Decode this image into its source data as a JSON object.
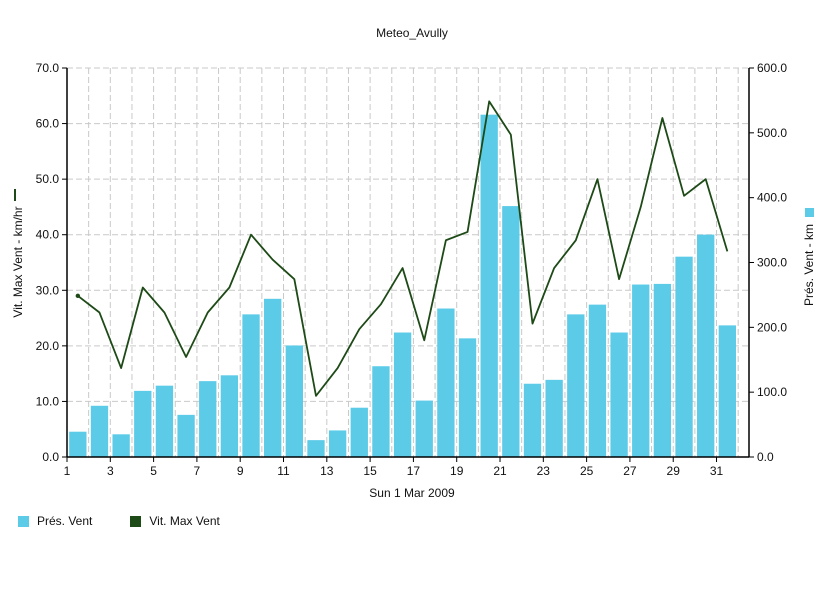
{
  "colors": {
    "bar": "#5bcbe8",
    "line": "#1d4a16",
    "grid": "#c9c9c9",
    "axis": "#000000"
  },
  "chart_data": {
    "type": "bar+line",
    "title": "Meteo_Avully",
    "xlabel": "Sun 1 Mar 2009",
    "x": [
      1,
      2,
      3,
      4,
      5,
      6,
      7,
      8,
      9,
      10,
      11,
      12,
      13,
      14,
      15,
      16,
      17,
      18,
      19,
      20,
      21,
      22,
      23,
      24,
      25,
      26,
      27,
      28,
      29,
      30,
      31,
      32
    ],
    "x_ticks": [
      "1",
      "3",
      "5",
      "7",
      "9",
      "11",
      "13",
      "15",
      "17",
      "19",
      "21",
      "23",
      "25",
      "27",
      "29",
      "31"
    ],
    "xlim": [
      1,
      32.5
    ],
    "y_left": {
      "label": "Vit. Max Vent - km/hr",
      "lim": [
        0,
        70
      ],
      "ticks": [
        "0.0",
        "10.0",
        "20.0",
        "30.0",
        "40.0",
        "50.0",
        "60.0",
        "70.0"
      ]
    },
    "y_right": {
      "label": "Prés. Vent - km",
      "lim": [
        0,
        600
      ],
      "ticks": [
        "0.0",
        "100.0",
        "200.0",
        "300.0",
        "400.0",
        "500.0",
        "600.0"
      ]
    },
    "series": [
      {
        "name": "Prés. Vent",
        "type": "bar",
        "axis": "right",
        "x": [
          1.5,
          2.5,
          3.5,
          4.5,
          5.5,
          6.5,
          7.5,
          8.5,
          9.5,
          10.5,
          11.5,
          12.5,
          13.5,
          14.5,
          15.5,
          16.5,
          17.5,
          18.5,
          19.5,
          20.5,
          21.5,
          22.5,
          23.5,
          24.5,
          25.5,
          26.5,
          27.5,
          28.5,
          29.5,
          30.5,
          31.5
        ],
        "values": [
          39,
          79,
          35,
          102,
          110,
          65,
          117,
          126,
          220,
          244,
          172,
          26,
          41,
          76,
          140,
          192,
          87,
          229,
          183,
          528,
          387,
          113,
          119,
          220,
          235,
          192,
          266,
          267,
          309,
          343,
          203
        ]
      },
      {
        "name": "Vit. Max Vent",
        "type": "line",
        "axis": "left",
        "x": [
          1.5,
          2.5,
          3.5,
          4.5,
          5.5,
          6.5,
          7.5,
          8.5,
          9.5,
          10.5,
          11.5,
          12.5,
          13.5,
          14.5,
          15.5,
          16.5,
          17.5,
          18.5,
          19.5,
          20.5,
          21.5,
          22.5,
          23.5,
          24.5,
          25.5,
          26.5,
          27.5,
          28.5,
          29.5,
          30.5,
          31.5
        ],
        "values": [
          29,
          26,
          16,
          30.5,
          26,
          18,
          26,
          30.5,
          40,
          35.5,
          32,
          11,
          16,
          23,
          27.5,
          34,
          21,
          39,
          40.5,
          64,
          58,
          24,
          34,
          39,
          50,
          32,
          45,
          61,
          47,
          50,
          37
        ]
      }
    ],
    "legend": {
      "placement": "bottom-left",
      "items": [
        {
          "label": "Prés. Vent",
          "color": "#5bcbe8"
        },
        {
          "label": "Vit. Max Vent",
          "color": "#1d4a16"
        }
      ]
    },
    "grid": true
  }
}
